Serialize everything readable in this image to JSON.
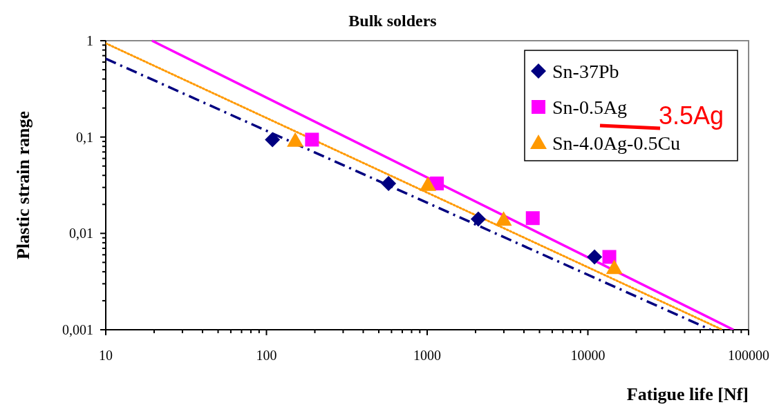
{
  "chart_data": {
    "type": "scatter",
    "title": "Bulk solders",
    "xlabel": "Fatigue life [Nf]",
    "ylabel": "Plastic strain range",
    "log": "xy",
    "grid": false,
    "legend": "top right",
    "annotations": [
      "3.5Ag"
    ],
    "xlim": [
      10,
      100000
    ],
    "ylim": [
      0.001,
      1
    ],
    "xticks": [
      10,
      {
        "value": 20,
        "label": null
      },
      {
        "value": 30,
        "label": null
      },
      {
        "value": 40,
        "label": null
      },
      {
        "value": 50,
        "label": null
      },
      {
        "value": 60,
        "label": null
      },
      {
        "value": 70,
        "label": null
      },
      {
        "value": 80,
        "label": null
      },
      {
        "value": 90,
        "label": null
      },
      100,
      {
        "value": 200,
        "label": null
      },
      {
        "value": 300,
        "label": null
      },
      {
        "value": 400,
        "label": null
      },
      {
        "value": 500,
        "label": null
      },
      {
        "value": 600,
        "label": null
      },
      {
        "value": 700,
        "label": null
      },
      {
        "value": 800,
        "label": null
      },
      {
        "value": 900,
        "label": null
      },
      1000,
      {
        "value": 2000,
        "label": null
      },
      {
        "value": 3000,
        "label": null
      },
      {
        "value": 4000,
        "label": null
      },
      {
        "value": 5000,
        "label": null
      },
      {
        "value": 6000,
        "label": null
      },
      {
        "value": 7000,
        "label": null
      },
      {
        "value": 8000,
        "label": null
      },
      {
        "value": 9000,
        "label": null
      },
      10000,
      {
        "value": 20000,
        "label": null
      },
      {
        "value": 30000,
        "label": null
      },
      {
        "value": 40000,
        "label": null
      },
      {
        "value": 50000,
        "label": null
      },
      {
        "value": 60000,
        "label": null
      },
      {
        "value": 70000,
        "label": null
      },
      {
        "value": 80000,
        "label": null
      },
      {
        "value": 90000,
        "label": null
      },
      100000
    ],
    "yticks": [
      {
        "value": 0.001,
        "label": "0,001"
      },
      {
        "value": 0.002,
        "label": null
      },
      {
        "value": 0.003,
        "label": null
      },
      {
        "value": 0.004,
        "label": null
      },
      {
        "value": 0.005,
        "label": null
      },
      {
        "value": 0.006,
        "label": null
      },
      {
        "value": 0.007,
        "label": null
      },
      {
        "value": 0.008,
        "label": null
      },
      {
        "value": 0.009,
        "label": null
      },
      {
        "value": 0.01,
        "label": "0,01"
      },
      {
        "value": 0.02,
        "label": null
      },
      {
        "value": 0.03,
        "label": null
      },
      {
        "value": 0.04,
        "label": null
      },
      {
        "value": 0.05,
        "label": null
      },
      {
        "value": 0.06,
        "label": null
      },
      {
        "value": 0.07,
        "label": null
      },
      {
        "value": 0.08,
        "label": null
      },
      {
        "value": 0.09,
        "label": null
      },
      {
        "value": 0.1,
        "label": "0,1"
      },
      {
        "value": 0.2,
        "label": null
      },
      {
        "value": 0.3,
        "label": null
      },
      {
        "value": 0.4,
        "label": null
      },
      {
        "value": 0.5,
        "label": null
      },
      {
        "value": 0.6,
        "label": null
      },
      {
        "value": 0.7,
        "label": null
      },
      {
        "value": 0.8,
        "label": null
      },
      {
        "value": 0.9,
        "label": null
      },
      1
    ],
    "series": [
      {
        "name": "Sn-37Pb",
        "marker": "diamond",
        "color": "#000080",
        "x": [
          109,
          575,
          2080,
          11000
        ],
        "values": [
          0.094,
          0.033,
          0.0141,
          0.0057
        ]
      },
      {
        "name": "Sn-0.5Ag",
        "marker": "square",
        "color": "#ff00ff",
        "x": [
          192,
          1150,
          4540,
          13600
        ],
        "values": [
          0.094,
          0.033,
          0.0144,
          0.0057
        ]
      },
      {
        "name": "Sn-4.0Ag-0.5Cu",
        "marker": "triangle",
        "color": "#ff9900",
        "x": [
          151,
          1010,
          2990,
          14600
        ],
        "values": [
          0.092,
          0.032,
          0.0139,
          0.0044
        ]
      },
      {
        "type": "line",
        "line_style": "dashed",
        "color": "#000080",
        "x": [
          10,
          58000
        ],
        "values": [
          0.65,
          0.001
        ]
      },
      {
        "type": "line",
        "line_style": "solid",
        "color": "#ff00ff",
        "x": [
          19.4,
          80500
        ],
        "values": [
          1,
          0.001
        ]
      },
      {
        "type": "line",
        "line_style": "dotted",
        "color": "#ff9900",
        "x": [
          10,
          68700
        ],
        "values": [
          0.94,
          0.001
        ]
      }
    ]
  }
}
